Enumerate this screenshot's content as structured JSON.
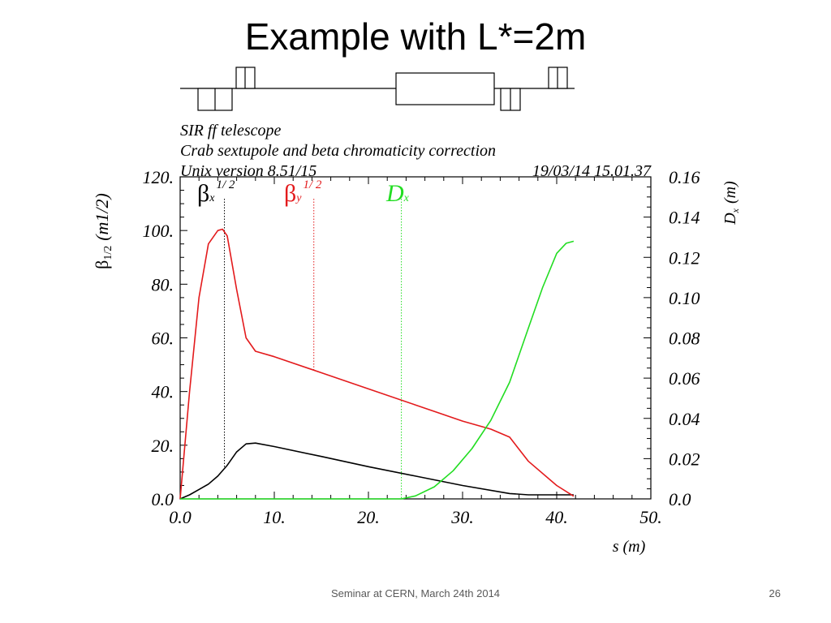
{
  "slide": {
    "title": "Example with L*=2m",
    "footer_text": "Seminar at CERN, March 24th 2014",
    "page_number": "26"
  },
  "chart_data": {
    "type": "line",
    "header_lines": [
      "SIR ff telescope",
      "Crab sextupole and beta chromaticity correction",
      "Unix version 8.51/15"
    ],
    "date_stamp": "19/03/14  15.01.37",
    "xlabel": "s (m)",
    "ylabel_left": {
      "symbol": "β",
      "sub": "1/2",
      "unit": "(m1/2)"
    },
    "ylabel_right": {
      "symbol": "D",
      "sub": "x",
      "unit": "(m)"
    },
    "xlim": [
      0,
      50
    ],
    "ylim_left": [
      0,
      120
    ],
    "ylim_right": [
      0,
      0.16
    ],
    "x_ticks": [
      "0.0",
      "10.",
      "20.",
      "30.",
      "40.",
      "50."
    ],
    "y_ticks_left": [
      "0.0",
      "20.",
      "40.",
      "60.",
      "80.",
      "100.",
      "120."
    ],
    "y_ticks_right": [
      "0.0",
      "0.02",
      "0.04",
      "0.06",
      "0.08",
      "0.10",
      "0.12",
      "0.14",
      "0.16"
    ],
    "legend_position": "top-left",
    "series": [
      {
        "name": "β",
        "sub": "x",
        "sup": "1/ 2",
        "color": "#000000",
        "axis": "left",
        "marker_s": 4.7,
        "x": [
          0,
          1,
          2,
          3,
          4,
          5,
          6,
          7,
          8,
          10,
          15,
          20,
          25,
          30,
          35,
          37,
          40,
          41.8
        ],
        "y": [
          0,
          1.5,
          3.5,
          5.5,
          8.5,
          12.5,
          17.5,
          20.5,
          20.8,
          19.5,
          15.8,
          12.0,
          8.5,
          5.0,
          2.0,
          1.5,
          1.5,
          1.5
        ]
      },
      {
        "name": "β",
        "sub": "y",
        "sup": "1/ 2",
        "color": "#e31a1c",
        "axis": "left",
        "marker_s": 14.2,
        "x": [
          0,
          1,
          2,
          3,
          4,
          4.5,
          5,
          6,
          7,
          8,
          10,
          15,
          20,
          25,
          30,
          33,
          35,
          37,
          40,
          41.8
        ],
        "y": [
          0,
          40,
          75,
          95,
          100,
          100.5,
          98,
          78,
          60,
          55,
          53,
          47,
          41,
          35,
          29,
          26,
          23,
          14,
          5,
          1
        ]
      },
      {
        "name": "D",
        "sub": "x",
        "color": "#22dd22",
        "axis": "right",
        "marker_s": 23.5,
        "x": [
          0,
          23.5,
          25,
          27,
          29,
          31,
          33,
          35,
          37,
          38.5,
          40,
          41,
          41.8
        ],
        "y": [
          0,
          0,
          0.0015,
          0.006,
          0.014,
          0.025,
          0.039,
          0.058,
          0.085,
          0.105,
          0.122,
          0.127,
          0.128
        ]
      }
    ]
  },
  "lattice": {
    "line_color": "#000000"
  }
}
